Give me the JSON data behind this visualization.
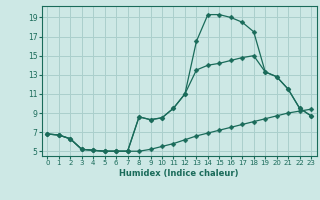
{
  "xlabel": "Humidex (Indice chaleur)",
  "background_color": "#cde8e5",
  "grid_color": "#aacfcc",
  "line_color": "#1a6b5a",
  "xlim": [
    -0.5,
    23.5
  ],
  "ylim": [
    4.5,
    20.2
  ],
  "xticks": [
    0,
    1,
    2,
    3,
    4,
    5,
    6,
    7,
    8,
    9,
    10,
    11,
    12,
    13,
    14,
    15,
    16,
    17,
    18,
    19,
    20,
    21,
    22,
    23
  ],
  "yticks": [
    5,
    7,
    9,
    11,
    13,
    15,
    17,
    19
  ],
  "series1_x": [
    0,
    1,
    2,
    3,
    4,
    5,
    6,
    7,
    8,
    9,
    10,
    11,
    12,
    13,
    14,
    15,
    16,
    17,
    18,
    19,
    20,
    21,
    22,
    23
  ],
  "series1_y": [
    6.8,
    6.7,
    6.3,
    5.2,
    5.1,
    5.0,
    5.0,
    5.0,
    5.0,
    5.2,
    5.5,
    5.8,
    6.2,
    6.6,
    6.9,
    7.2,
    7.5,
    7.8,
    8.1,
    8.4,
    8.7,
    9.0,
    9.2,
    9.4
  ],
  "series2_x": [
    0,
    1,
    2,
    3,
    4,
    5,
    6,
    7,
    8,
    9,
    10,
    11,
    12,
    13,
    14,
    15,
    16,
    17,
    18,
    19,
    20,
    21,
    22,
    23
  ],
  "series2_y": [
    6.8,
    6.7,
    6.3,
    5.2,
    5.1,
    5.0,
    5.0,
    5.0,
    8.6,
    8.3,
    8.5,
    9.5,
    11.0,
    13.5,
    14.0,
    14.2,
    14.5,
    14.8,
    15.0,
    13.3,
    12.8,
    11.5,
    9.5,
    8.7
  ],
  "series3_x": [
    0,
    1,
    2,
    3,
    4,
    5,
    6,
    7,
    8,
    9,
    10,
    11,
    12,
    13,
    14,
    15,
    16,
    17,
    18,
    19,
    20,
    21,
    22,
    23
  ],
  "series3_y": [
    6.8,
    6.7,
    6.3,
    5.2,
    5.1,
    5.0,
    5.0,
    5.0,
    8.6,
    8.3,
    8.5,
    9.5,
    11.0,
    16.5,
    19.3,
    19.3,
    19.0,
    18.5,
    17.5,
    13.3,
    12.8,
    11.5,
    9.5,
    8.7
  ]
}
